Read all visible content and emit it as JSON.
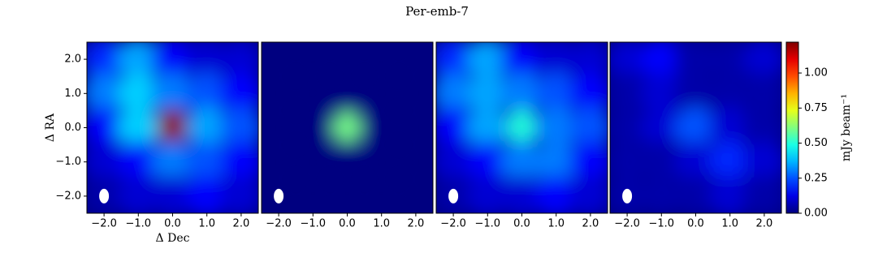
{
  "chart_data": {
    "type": "image",
    "title": "Per-emb-7",
    "xlabel": "Δ Dec",
    "ylabel": "Δ RA",
    "xlim": [
      -2.5,
      2.5
    ],
    "ylim": [
      -2.5,
      2.5
    ],
    "xticks": [
      {
        "value": -2,
        "label": "−2.0"
      },
      {
        "value": -1,
        "label": "−1.0"
      },
      {
        "value": 0,
        "label": "0.0"
      },
      {
        "value": 1,
        "label": "1.0"
      },
      {
        "value": 2,
        "label": "2.0"
      }
    ],
    "yticks": [
      {
        "value": -2,
        "label": "−2.0"
      },
      {
        "value": -1,
        "label": "−1.0"
      },
      {
        "value": 0,
        "label": "0.0"
      },
      {
        "value": 1,
        "label": "1.0"
      },
      {
        "value": 2,
        "label": "2.0"
      }
    ],
    "colormap": "jet",
    "clim": [
      0,
      1.22
    ],
    "colorbar_label": "mJy beam⁻¹",
    "colorbar_ticks": [
      {
        "value": 0,
        "label": "0.00"
      },
      {
        "value": 0.25,
        "label": "0.25"
      },
      {
        "value": 0.5,
        "label": "0.50"
      },
      {
        "value": 0.75,
        "label": "0.75"
      },
      {
        "value": 1,
        "label": "1.00"
      }
    ],
    "panels": [
      {
        "values": [
          [
            0.2,
            0.35,
            0.15,
            0.1,
            0.1
          ],
          [
            0.3,
            0.4,
            0.3,
            0.25,
            0.15
          ],
          [
            0.15,
            0.4,
            1.2,
            0.35,
            0.25
          ],
          [
            0.1,
            0.15,
            0.3,
            0.25,
            0.15
          ],
          [
            0.05,
            0.1,
            0.1,
            0.15,
            0.1
          ]
        ]
      },
      {
        "values": [
          [
            0,
            0,
            0,
            0,
            0
          ],
          [
            0,
            0,
            0,
            0,
            0
          ],
          [
            0,
            0,
            0.6,
            0,
            0
          ],
          [
            0,
            0,
            0,
            0,
            0
          ],
          [
            0,
            0,
            0,
            0,
            0
          ]
        ]
      },
      {
        "values": [
          [
            0.2,
            0.35,
            0.15,
            0.1,
            0.1
          ],
          [
            0.3,
            0.35,
            0.3,
            0.25,
            0.15
          ],
          [
            0.15,
            0.35,
            0.5,
            0.3,
            0.25
          ],
          [
            0.1,
            0.15,
            0.3,
            0.3,
            0.15
          ],
          [
            0.05,
            0.1,
            0.1,
            0.15,
            0.1
          ]
        ]
      },
      {
        "values": [
          [
            0.1,
            0.15,
            0.05,
            0.05,
            0.1
          ],
          [
            0.05,
            0.1,
            0.05,
            0.05,
            0.05
          ],
          [
            0.05,
            0.1,
            0.25,
            0.1,
            0.05
          ],
          [
            0.05,
            0.05,
            0.1,
            0.2,
            0.1
          ],
          [
            0.05,
            0.05,
            0.05,
            0.1,
            0.05
          ]
        ]
      }
    ]
  }
}
